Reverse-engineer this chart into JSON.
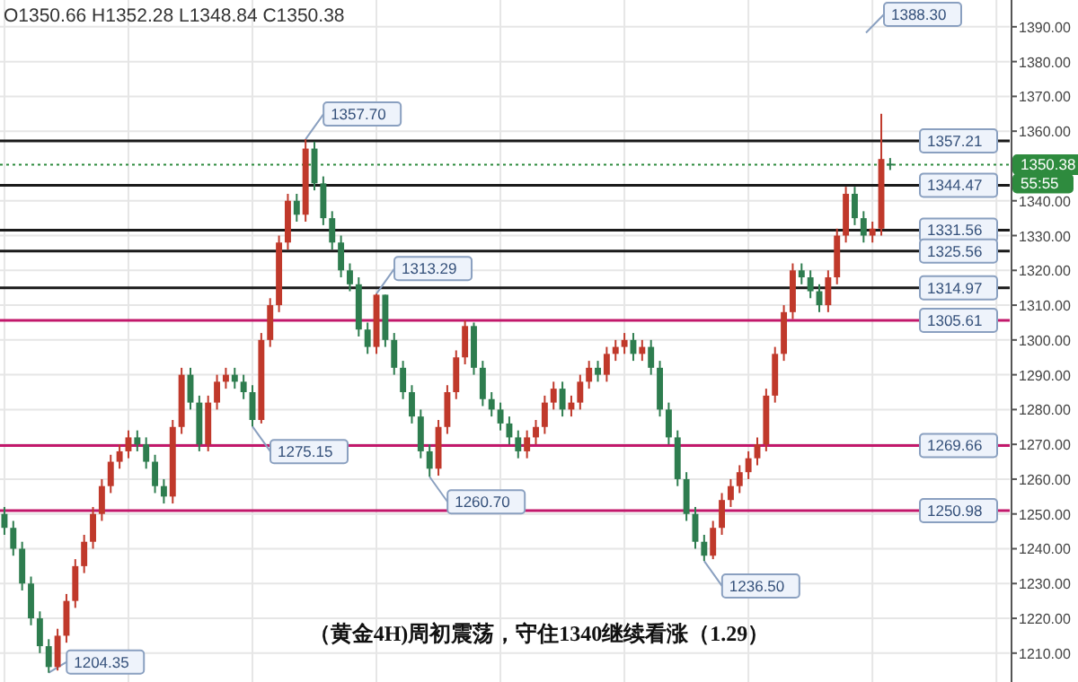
{
  "chart_data": {
    "type": "candlestick",
    "categories": [
      null,
      null,
      null,
      null,
      null,
      null,
      null,
      null,
      null,
      null,
      null,
      null,
      null,
      null,
      null,
      null,
      null,
      null,
      null,
      null,
      null,
      null,
      null,
      null,
      null,
      null,
      null,
      null,
      null,
      null,
      null,
      null,
      null,
      null,
      null,
      null,
      null,
      null,
      null,
      null,
      null,
      null,
      null,
      null,
      null,
      null,
      null,
      null,
      null,
      null,
      null,
      null,
      null,
      null,
      null,
      null,
      null,
      null,
      null,
      null,
      null,
      null,
      null,
      null,
      null,
      null,
      null,
      null,
      null,
      null,
      null,
      null,
      null,
      null,
      null,
      null,
      null,
      null,
      null,
      null,
      null,
      null,
      null,
      null,
      null,
      null,
      null,
      null,
      null,
      null,
      null,
      null,
      null,
      null,
      null,
      null,
      null,
      null,
      null,
      null,
      null,
      null,
      null,
      null,
      null,
      null,
      null,
      null,
      null,
      null,
      null,
      null,
      null,
      null
    ],
    "ohlc": [
      [
        1250,
        1252,
        1244,
        1246
      ],
      [
        1246,
        1248,
        1238,
        1240
      ],
      [
        1240,
        1242,
        1228,
        1230
      ],
      [
        1230,
        1232,
        1218,
        1220
      ],
      [
        1220,
        1222,
        1210,
        1212
      ],
      [
        1212,
        1214,
        1204.35,
        1206
      ],
      [
        1206,
        1217,
        1205,
        1215
      ],
      [
        1215,
        1227,
        1213,
        1225
      ],
      [
        1225,
        1237,
        1223,
        1235
      ],
      [
        1235,
        1244,
        1233,
        1242
      ],
      [
        1242,
        1252,
        1240,
        1250
      ],
      [
        1250,
        1260,
        1248,
        1258
      ],
      [
        1258,
        1267,
        1256,
        1265
      ],
      [
        1265,
        1270,
        1263,
        1268
      ],
      [
        1268,
        1274,
        1266,
        1272
      ],
      [
        1272,
        1274,
        1268,
        1270
      ],
      [
        1270,
        1272,
        1263,
        1265
      ],
      [
        1265,
        1267,
        1256,
        1258
      ],
      [
        1258,
        1260,
        1253,
        1255
      ],
      [
        1255,
        1277,
        1253,
        1275
      ],
      [
        1275,
        1292,
        1273,
        1290
      ],
      [
        1290,
        1292,
        1280,
        1282
      ],
      [
        1282,
        1284,
        1268,
        1270
      ],
      [
        1270,
        1284,
        1268,
        1282
      ],
      [
        1282,
        1290,
        1280,
        1288
      ],
      [
        1288,
        1292,
        1286,
        1290
      ],
      [
        1290,
        1292,
        1286,
        1288
      ],
      [
        1288,
        1290,
        1283,
        1285
      ],
      [
        1285,
        1287,
        1275.15,
        1277
      ],
      [
        1277,
        1302,
        1276,
        1300
      ],
      [
        1300,
        1312,
        1298,
        1310
      ],
      [
        1310,
        1330,
        1308,
        1328
      ],
      [
        1328,
        1342,
        1326,
        1340
      ],
      [
        1340,
        1342,
        1334,
        1336
      ],
      [
        1336,
        1357.7,
        1334,
        1355
      ],
      [
        1355,
        1357,
        1343,
        1345
      ],
      [
        1345,
        1347,
        1333,
        1335
      ],
      [
        1335,
        1337,
        1326,
        1328
      ],
      [
        1328,
        1330,
        1318,
        1320
      ],
      [
        1320,
        1322,
        1314,
        1316
      ],
      [
        1316,
        1318,
        1301,
        1303
      ],
      [
        1303,
        1305,
        1296,
        1298
      ],
      [
        1298,
        1313.29,
        1296,
        1313
      ],
      [
        1313,
        1313,
        1298,
        1300
      ],
      [
        1300,
        1302,
        1290,
        1292
      ],
      [
        1292,
        1294,
        1283,
        1285
      ],
      [
        1285,
        1287,
        1276,
        1278
      ],
      [
        1278,
        1280,
        1266,
        1268
      ],
      [
        1268,
        1270,
        1260.7,
        1263
      ],
      [
        1263,
        1277,
        1261,
        1275
      ],
      [
        1275,
        1287,
        1273,
        1285
      ],
      [
        1285,
        1297,
        1283,
        1295
      ],
      [
        1295,
        1305.61,
        1293,
        1304
      ],
      [
        1304,
        1305,
        1290,
        1292
      ],
      [
        1292,
        1294,
        1281,
        1283
      ],
      [
        1283,
        1285,
        1278,
        1280
      ],
      [
        1280,
        1282,
        1274,
        1276
      ],
      [
        1276,
        1278,
        1270,
        1272
      ],
      [
        1272,
        1274,
        1266,
        1268
      ],
      [
        1268,
        1274,
        1266,
        1272
      ],
      [
        1272,
        1277,
        1270,
        1275
      ],
      [
        1275,
        1284,
        1273,
        1282
      ],
      [
        1282,
        1288,
        1280,
        1286
      ],
      [
        1286,
        1288,
        1278,
        1280
      ],
      [
        1280,
        1284,
        1278,
        1282
      ],
      [
        1282,
        1290,
        1280,
        1288
      ],
      [
        1288,
        1294,
        1286,
        1292
      ],
      [
        1292,
        1294,
        1288,
        1290
      ],
      [
        1290,
        1298,
        1288,
        1296
      ],
      [
        1296,
        1300,
        1294,
        1298
      ],
      [
        1298,
        1302,
        1296,
        1300
      ],
      [
        1300,
        1302,
        1294,
        1296
      ],
      [
        1296,
        1300,
        1294,
        1298
      ],
      [
        1298,
        1300,
        1290,
        1292
      ],
      [
        1292,
        1294,
        1278,
        1280
      ],
      [
        1280,
        1282,
        1270,
        1272
      ],
      [
        1272,
        1274,
        1258,
        1260
      ],
      [
        1260,
        1262,
        1248,
        1250
      ],
      [
        1250,
        1252,
        1240,
        1242
      ],
      [
        1242,
        1244,
        1236.5,
        1238
      ],
      [
        1238,
        1248,
        1237,
        1246
      ],
      [
        1246,
        1256,
        1244,
        1254
      ],
      [
        1254,
        1260,
        1252,
        1258
      ],
      [
        1258,
        1264,
        1256,
        1262
      ],
      [
        1262,
        1268,
        1260,
        1266
      ],
      [
        1266,
        1272,
        1264,
        1270
      ],
      [
        1270,
        1286,
        1268,
        1284
      ],
      [
        1284,
        1298,
        1282,
        1296
      ],
      [
        1296,
        1310,
        1294,
        1308
      ],
      [
        1308,
        1322,
        1306,
        1320
      ],
      [
        1320,
        1322,
        1316,
        1318
      ],
      [
        1318,
        1320,
        1312,
        1314
      ],
      [
        1314,
        1316,
        1308,
        1310
      ],
      [
        1310,
        1320,
        1308,
        1318
      ],
      [
        1318,
        1332,
        1316,
        1330
      ],
      [
        1330,
        1344,
        1328,
        1342
      ],
      [
        1342,
        1344,
        1333,
        1335
      ],
      [
        1335,
        1337,
        1328,
        1330
      ],
      [
        1330,
        1334,
        1328,
        1332
      ],
      [
        1332,
        1365,
        1330,
        1352
      ],
      [
        1350.66,
        1352.28,
        1348.84,
        1350.38
      ],
      null,
      null,
      null,
      null,
      null,
      null,
      null,
      null,
      null,
      null,
      null,
      null,
      null
    ],
    "ylim": [
      1201.7,
      1397.7
    ],
    "yticks": [
      {
        "value": 1210,
        "label": "1210.00"
      },
      {
        "value": 1220,
        "label": "1220.00"
      },
      {
        "value": 1230,
        "label": "1230.00"
      },
      {
        "value": 1240,
        "label": "1240.00"
      },
      {
        "value": 1250,
        "label": "1250.00"
      },
      {
        "value": 1260,
        "label": "1260.00"
      },
      {
        "value": 1270,
        "label": "1270.00"
      },
      {
        "value": 1280,
        "label": "1280.00"
      },
      {
        "value": 1290,
        "label": "1290.00"
      },
      {
        "value": 1300,
        "label": "1300.00"
      },
      {
        "value": 1310,
        "label": "1310.00"
      },
      {
        "value": 1320,
        "label": "1320.00"
      },
      {
        "value": 1330,
        "label": "1330.00"
      },
      {
        "value": 1340,
        "label": "1340.00"
      },
      {
        "value": 1360,
        "label": "1360.00"
      },
      {
        "value": 1370,
        "label": "1370.00"
      },
      {
        "value": 1380,
        "label": "1380.00"
      },
      {
        "value": 1390,
        "label": "1390.00"
      }
    ],
    "grid": true,
    "ref_lines": [
      {
        "axis": "y",
        "value": 1357.21,
        "label": "1357.21",
        "color": "#1a1a1a"
      },
      {
        "axis": "y",
        "value": 1344.47,
        "label": "1344.47",
        "color": "#1a1a1a"
      },
      {
        "axis": "y",
        "value": 1331.56,
        "label": "1331.56",
        "color": "#1a1a1a"
      },
      {
        "axis": "y",
        "value": 1325.56,
        "label": "1325.56",
        "color": "#1a1a1a"
      },
      {
        "axis": "y",
        "value": 1314.97,
        "label": "1314.97",
        "color": "#1a1a1a"
      },
      {
        "axis": "y",
        "value": 1305.61,
        "label": "1305.61",
        "color": "#c2186b"
      },
      {
        "axis": "y",
        "value": 1269.66,
        "label": "1269.66",
        "color": "#c2186b"
      },
      {
        "axis": "y",
        "value": 1250.98,
        "label": "1250.98",
        "color": "#c2186b"
      },
      {
        "axis": "y",
        "value": 1350.38,
        "label": "1350.38",
        "color": "#2e8b3e",
        "line_style": "dotted"
      }
    ],
    "annotations": [
      "O1350.66  H1352.28  L1348.84  C1350.38",
      "55:55",
      "（黄金4H)周初震荡，守住1340继续看涨（1.29）",
      "1357.70",
      "1313.29",
      "1275.15",
      "1260.70",
      "1204.35",
      "1236.50",
      "1388.30"
    ]
  }
}
